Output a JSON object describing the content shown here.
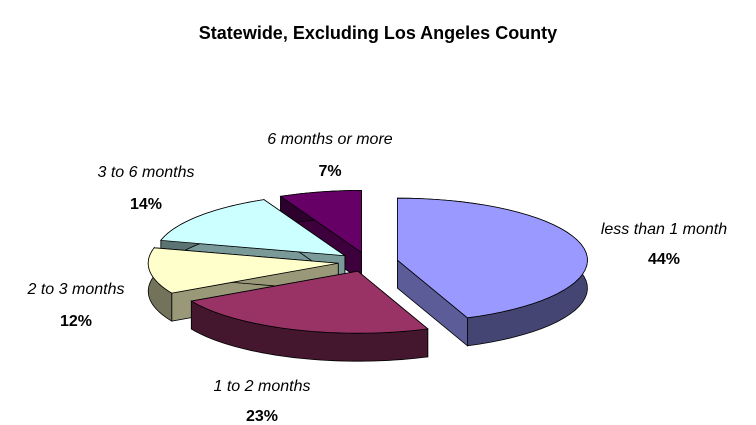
{
  "chart_data": {
    "type": "pie",
    "title": "Statewide, Excluding Los Angeles County",
    "categories": [
      "less than 1 month",
      "1 to 2 months",
      "2 to 3 months",
      "3 to 6 months",
      "6 months or more"
    ],
    "values": [
      44,
      23,
      12,
      14,
      7
    ],
    "value_labels": [
      "44%",
      "23%",
      "12%",
      "14%",
      "7%"
    ],
    "colors": [
      "#9999ff",
      "#993366",
      "#ffffcc",
      "#ccffff",
      "#660066"
    ]
  }
}
